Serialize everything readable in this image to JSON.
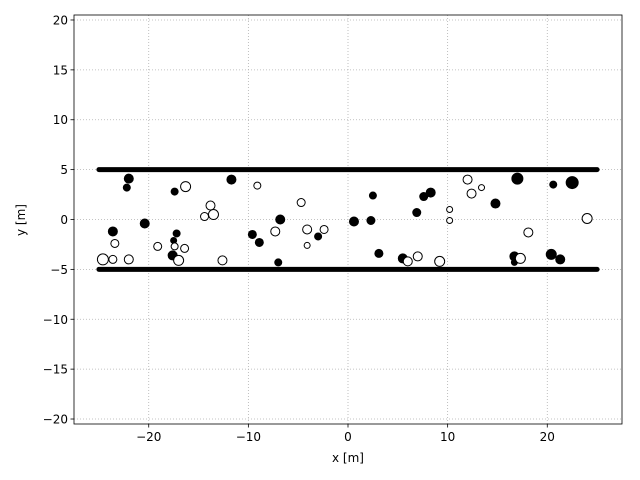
{
  "chart_data": {
    "type": "scatter",
    "xlabel": "x [m]",
    "ylabel": "y [m]",
    "xlim": [
      -27.5,
      27.5
    ],
    "ylim": [
      -20.5,
      20.5
    ],
    "xticks": [
      {
        "value": -20,
        "label": "−20"
      },
      {
        "value": -10,
        "label": "−10"
      },
      0,
      10,
      20
    ],
    "yticks": [
      {
        "value": -20,
        "label": "−20"
      },
      {
        "value": -15,
        "label": "−15"
      },
      {
        "value": -10,
        "label": "−10"
      },
      {
        "value": -5,
        "label": "−5"
      },
      0,
      5,
      10,
      15,
      20
    ],
    "grid": true,
    "series": [
      {
        "type": "line",
        "color": "#000000",
        "x": [
          -25,
          25
        ],
        "y": [
          5,
          5
        ]
      },
      {
        "type": "line",
        "color": "#000000",
        "x": [
          -25,
          25
        ],
        "y": [
          -5,
          -5
        ]
      },
      {
        "type": "scatter",
        "color": "#000000",
        "facecolor": "#000000",
        "x": [
          -22.0,
          -22.2,
          -17.4,
          -11.7,
          -23.6,
          -20.4,
          -17.2,
          -17.5,
          -17.6,
          -9.6,
          -8.9,
          -6.8,
          -7.0,
          -3.0,
          0.6,
          2.3,
          2.5,
          3.1,
          5.5,
          6.9,
          7.6,
          8.3,
          14.8,
          17.0,
          20.6,
          22.5,
          16.7,
          16.7,
          20.4,
          21.3
        ],
        "y": [
          4.1,
          3.2,
          2.8,
          4.0,
          -1.2,
          -0.4,
          -1.4,
          -2.1,
          -3.6,
          -1.5,
          -2.3,
          0.0,
          -4.3,
          -1.7,
          -0.2,
          -0.1,
          2.4,
          -3.4,
          -3.9,
          0.7,
          2.3,
          2.7,
          1.6,
          4.1,
          3.5,
          3.7,
          -3.7,
          -4.3,
          -3.5,
          -4.0
        ],
        "sizes": [
          4.5,
          3.5,
          3.5,
          4.5,
          4.5,
          4.5,
          3.5,
          3,
          4.5,
          4,
          4,
          4.5,
          3.5,
          3.5,
          4.5,
          4,
          3.5,
          4,
          4.5,
          4,
          4,
          4.5,
          4.5,
          5.5,
          3.5,
          6,
          4.5,
          3,
          5,
          4.5
        ]
      },
      {
        "type": "scatter",
        "color": "#000000",
        "facecolor": "#ffffff",
        "x": [
          -24.6,
          -23.6,
          -23.4,
          -22.0,
          -19.1,
          -17.4,
          -17.0,
          -16.4,
          -16.3,
          -13.8,
          -14.4,
          -13.5,
          -12.6,
          -9.1,
          -7.3,
          -4.7,
          -4.1,
          -4.1,
          -2.4,
          6.0,
          7.0,
          9.2,
          10.2,
          10.2,
          12.0,
          12.4,
          13.4,
          17.3,
          18.1,
          24.0
        ],
        "y": [
          -4.0,
          -4.0,
          -2.4,
          -4.0,
          -2.7,
          -2.7,
          -4.1,
          -2.9,
          3.3,
          1.4,
          0.3,
          0.5,
          -4.1,
          3.4,
          -1.2,
          1.7,
          -1.0,
          -2.6,
          -1.0,
          -4.2,
          -3.7,
          -4.2,
          1.0,
          -0.1,
          4.0,
          2.6,
          3.2,
          -3.9,
          -1.3,
          0.1
        ],
        "sizes": [
          5.5,
          4,
          4,
          4.5,
          4,
          3.5,
          5,
          4,
          5,
          4.5,
          4,
          5,
          4.5,
          3.5,
          4.5,
          4,
          4.5,
          3,
          4,
          4.5,
          4.5,
          5,
          3,
          3,
          4.5,
          4.5,
          3,
          5,
          4.5,
          5
        ]
      }
    ]
  }
}
